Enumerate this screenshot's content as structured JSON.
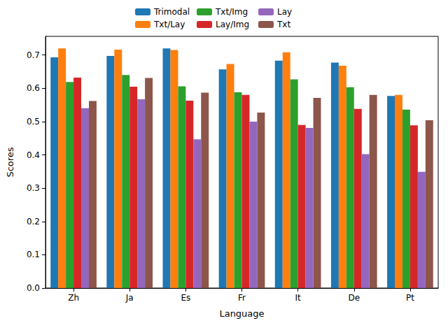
{
  "chart_data": {
    "type": "bar",
    "x_label": "Language",
    "y_label": "Scores",
    "categories": [
      "Zh",
      "Ja",
      "Es",
      "Fr",
      "It",
      "De",
      "Pt"
    ],
    "series": [
      {
        "name": "Trimodal",
        "color": "#1f77b4",
        "values": [
          0.693,
          0.697,
          0.72,
          0.657,
          0.683,
          0.677,
          0.577
        ]
      },
      {
        "name": "Txt/Lay",
        "color": "#ff7f0e",
        "values": [
          0.72,
          0.716,
          0.715,
          0.673,
          0.708,
          0.668,
          0.58
        ]
      },
      {
        "name": "Txt/Img",
        "color": "#2ca02c",
        "values": [
          0.619,
          0.64,
          0.606,
          0.588,
          0.627,
          0.603,
          0.536
        ]
      },
      {
        "name": "Lay/Img",
        "color": "#d62728",
        "values": [
          0.632,
          0.605,
          0.563,
          0.58,
          0.49,
          0.538,
          0.489
        ]
      },
      {
        "name": "Lay",
        "color": "#9467bd",
        "values": [
          0.54,
          0.567,
          0.447,
          0.5,
          0.481,
          0.402,
          0.349
        ]
      },
      {
        "name": "Txt",
        "color": "#8c564b",
        "values": [
          0.562,
          0.631,
          0.587,
          0.527,
          0.571,
          0.58,
          0.504
        ]
      }
    ],
    "ylim": [
      0,
      0.756
    ],
    "yticks": [
      {
        "value": 0,
        "label": "0.0"
      },
      0.1,
      0.2,
      0.3,
      0.4,
      0.5,
      0.6,
      0.7
    ],
    "grid": false,
    "legend": "top"
  }
}
